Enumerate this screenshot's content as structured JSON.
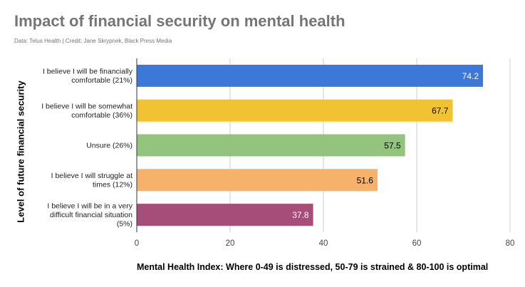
{
  "chart_data": {
    "type": "bar",
    "orientation": "horizontal",
    "title": "Impact of financial security on mental health",
    "subtitle": "Data: Telus Health | Credit: Jane Skrypnek, Black Press Media",
    "ylabel": "Level of future financial security",
    "xlabel": "Mental Health Index: Where 0-49 is distressed, 50-79 is strained & 80-100 is optimal",
    "xlim": [
      0,
      80
    ],
    "xticks": [
      0,
      20,
      40,
      60,
      80
    ],
    "grid": true,
    "legend": "none",
    "categories": [
      [
        "I believe I will be financially",
        "comfortable (21%)"
      ],
      [
        "I believe I will be somewhat",
        "comfortable (36%)"
      ],
      [
        "Unsure (26%)"
      ],
      [
        "I believe I will struggle at",
        "times (12%)"
      ],
      [
        "I believe I will be in a very",
        "difficult financial situation",
        "(5%)"
      ]
    ],
    "values": [
      74.2,
      67.7,
      57.5,
      51.6,
      37.8
    ],
    "value_labels": [
      "74.2",
      "67.7",
      "57.5",
      "51.6",
      "37.8"
    ],
    "colors": [
      "#3c78d8",
      "#f1c232",
      "#93c47d",
      "#f6b26b",
      "#a64d79"
    ],
    "label_colors": [
      "#ffffff",
      "#000000",
      "#000000",
      "#000000",
      "#ffffff"
    ]
  }
}
